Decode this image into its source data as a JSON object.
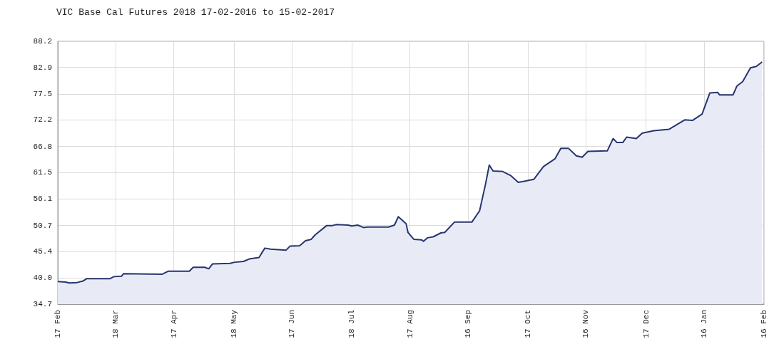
{
  "chart_data": {
    "type": "area",
    "title": "VIC Base Cal Futures 2018 17-02-2016 to 15-02-2017",
    "x": [
      "2016-02-17",
      "2016-02-21",
      "2016-02-23",
      "2016-02-27",
      "2016-03-01",
      "2016-03-03",
      "2016-03-15",
      "2016-03-17",
      "2016-03-21",
      "2016-03-22",
      "2016-04-11",
      "2016-04-14",
      "2016-04-25",
      "2016-04-27",
      "2016-05-03",
      "2016-05-05",
      "2016-05-07",
      "2016-05-16",
      "2016-05-18",
      "2016-05-23",
      "2016-05-26",
      "2016-05-31",
      "2016-06-03",
      "2016-06-06",
      "2016-06-14",
      "2016-06-16",
      "2016-06-21",
      "2016-06-24",
      "2016-06-27",
      "2016-06-29",
      "2016-07-05",
      "2016-07-08",
      "2016-07-10",
      "2016-07-16",
      "2016-07-18",
      "2016-07-21",
      "2016-07-24",
      "2016-07-26",
      "2016-08-06",
      "2016-08-09",
      "2016-08-11",
      "2016-08-15",
      "2016-08-16",
      "2016-08-19",
      "2016-08-23",
      "2016-08-24",
      "2016-08-26",
      "2016-08-29",
      "2016-09-02",
      "2016-09-04",
      "2016-09-09",
      "2016-09-18",
      "2016-09-22",
      "2016-09-25",
      "2016-09-27",
      "2016-09-29",
      "2016-10-04",
      "2016-10-08",
      "2016-10-12",
      "2016-10-15",
      "2016-10-20",
      "2016-10-25",
      "2016-10-31",
      "2016-11-03",
      "2016-11-07",
      "2016-11-11",
      "2016-11-14",
      "2016-11-17",
      "2016-11-27",
      "2016-11-30",
      "2016-12-02",
      "2016-12-05",
      "2016-12-07",
      "2016-12-12",
      "2016-12-15",
      "2016-12-21",
      "2016-12-29",
      "2017-01-06",
      "2017-01-10",
      "2017-01-15",
      "2017-01-19",
      "2017-01-23",
      "2017-01-24",
      "2017-01-31",
      "2017-02-02",
      "2017-02-05",
      "2017-02-09",
      "2017-02-12",
      "2017-02-15"
    ],
    "series": [
      {
        "color": "#27356f",
        "values": [
          39.3,
          39.2,
          39.0,
          39.1,
          39.4,
          39.9,
          39.9,
          40.3,
          40.4,
          40.9,
          40.8,
          41.4,
          41.4,
          42.2,
          42.2,
          41.9,
          42.9,
          43.0,
          43.2,
          43.4,
          43.9,
          44.2,
          46.1,
          45.9,
          45.7,
          46.5,
          46.6,
          47.6,
          47.9,
          48.8,
          50.7,
          50.7,
          50.9,
          50.8,
          50.6,
          50.8,
          50.3,
          50.4,
          50.4,
          50.8,
          52.5,
          51.1,
          49.3,
          47.9,
          47.8,
          47.5,
          48.2,
          48.4,
          49.2,
          49.3,
          51.4,
          51.4,
          53.7,
          59.0,
          63.0,
          61.8,
          61.7,
          60.9,
          59.5,
          59.7,
          60.1,
          62.7,
          64.3,
          66.4,
          66.4,
          64.9,
          64.6,
          65.8,
          65.9,
          68.4,
          67.6,
          67.6,
          68.7,
          68.4,
          69.5,
          70.0,
          70.3,
          72.2,
          72.1,
          73.4,
          77.7,
          77.8,
          77.3,
          77.3,
          79.1,
          80.0,
          82.8,
          83.1,
          84.0
        ]
      }
    ],
    "xlim": [
      "2016-02-17",
      "2017-02-16"
    ],
    "xticks": [
      {
        "value": "2016-02-17",
        "label": "17 Feb"
      },
      {
        "value": "2016-03-18",
        "label": "18 Mar"
      },
      {
        "value": "2016-04-17",
        "label": "17 Apr"
      },
      {
        "value": "2016-05-18",
        "label": "18 May"
      },
      {
        "value": "2016-06-17",
        "label": "17 Jun"
      },
      {
        "value": "2016-07-18",
        "label": "18 Jul"
      },
      {
        "value": "2016-08-17",
        "label": "17 Aug"
      },
      {
        "value": "2016-09-16",
        "label": "16 Sep"
      },
      {
        "value": "2016-10-17",
        "label": "17 Oct"
      },
      {
        "value": "2016-11-16",
        "label": "16 Nov"
      },
      {
        "value": "2016-12-17",
        "label": "17 Dec"
      },
      {
        "value": "2017-01-16",
        "label": "16 Jan"
      },
      {
        "value": "2017-02-16",
        "label": "16 Feb"
      }
    ],
    "ylim": [
      34.7,
      88.2
    ],
    "yticks": [
      {
        "value": 34.7,
        "label": "34.7"
      },
      {
        "value": 40.0,
        "label": "40.0"
      },
      {
        "value": 45.4,
        "label": "45.4"
      },
      {
        "value": 50.7,
        "label": "50.7"
      },
      {
        "value": 56.1,
        "label": "56.1"
      },
      {
        "value": 61.5,
        "label": "61.5"
      },
      {
        "value": 66.8,
        "label": "66.8"
      },
      {
        "value": 72.2,
        "label": "72.2"
      },
      {
        "value": 77.5,
        "label": "77.5"
      },
      {
        "value": 82.9,
        "label": "82.9"
      },
      {
        "value": 88.2,
        "label": "88.2"
      }
    ],
    "grid": true,
    "marker": "none",
    "line_style": "solid"
  }
}
